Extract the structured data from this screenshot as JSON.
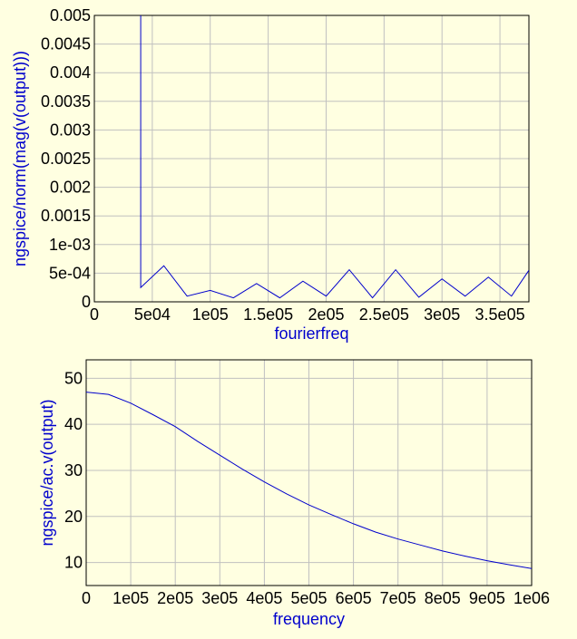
{
  "chart_data": [
    {
      "type": "line",
      "title": "",
      "xlabel": "fourierfreq",
      "ylabel": "ngspice/norm(mag(v(output)))",
      "xlim": [
        0,
        375000
      ],
      "ylim": [
        0,
        0.005
      ],
      "grid": true,
      "x_ticks": [
        0,
        50000,
        100000,
        150000,
        200000,
        250000,
        300000,
        350000
      ],
      "x_tick_labels": [
        "0",
        "5e04",
        "1e05",
        "1.5e05",
        "2e05",
        "2.5e05",
        "3e05",
        "3.5e05"
      ],
      "y_ticks": [
        0,
        0.0005,
        0.001,
        0.0015,
        0.002,
        0.0025,
        0.003,
        0.0035,
        0.004,
        0.0045,
        0.005
      ],
      "y_tick_labels": [
        "0",
        "5e-04",
        "1e-03",
        "0.0015",
        "0.002",
        "0.0025",
        "0.003",
        "0.0035",
        "0.004",
        "0.0045",
        "0.005"
      ],
      "series": [
        {
          "color": "#0000CC",
          "x": [
            40000,
            40000,
            60000,
            80000,
            100000,
            120000,
            140000,
            160000,
            180000,
            200000,
            220000,
            240000,
            260000,
            280000,
            300000,
            320000,
            340000,
            360000,
            375000
          ],
          "y": [
            0.006,
            0.00025,
            0.00063,
            0.0001,
            0.0002,
            7e-05,
            0.00032,
            7e-05,
            0.00036,
            0.0001,
            0.00056,
            7e-05,
            0.00056,
            8e-05,
            0.0004,
            0.0001,
            0.00043,
            0.0001,
            0.00055
          ]
        }
      ]
    },
    {
      "type": "line",
      "title": "",
      "xlabel": "frequency",
      "ylabel": "ngspice/ac.v(output)",
      "xlim": [
        0,
        1000000
      ],
      "ylim": [
        5,
        54
      ],
      "grid": true,
      "x_ticks": [
        0,
        100000,
        200000,
        300000,
        400000,
        500000,
        600000,
        700000,
        800000,
        900000,
        1000000
      ],
      "x_tick_labels": [
        "0",
        "1e05",
        "2e05",
        "3e05",
        "4e05",
        "5e05",
        "6e05",
        "7e05",
        "8e05",
        "9e05",
        "1e06"
      ],
      "y_ticks": [
        10,
        20,
        30,
        40,
        50
      ],
      "y_tick_labels": [
        "10",
        "20",
        "30",
        "40",
        "50"
      ],
      "series": [
        {
          "color": "#0000CC",
          "x": [
            0,
            50000,
            100000,
            150000,
            200000,
            250000,
            300000,
            350000,
            400000,
            450000,
            500000,
            550000,
            600000,
            650000,
            700000,
            750000,
            800000,
            850000,
            900000,
            950000,
            1000000
          ],
          "y": [
            47,
            46.5,
            44.6,
            42.1,
            39.5,
            36.3,
            33.3,
            30.3,
            27.5,
            24.9,
            22.5,
            20.4,
            18.4,
            16.6,
            15.1,
            13.8,
            12.5,
            11.4,
            10.4,
            9.5,
            8.7
          ]
        }
      ]
    }
  ]
}
